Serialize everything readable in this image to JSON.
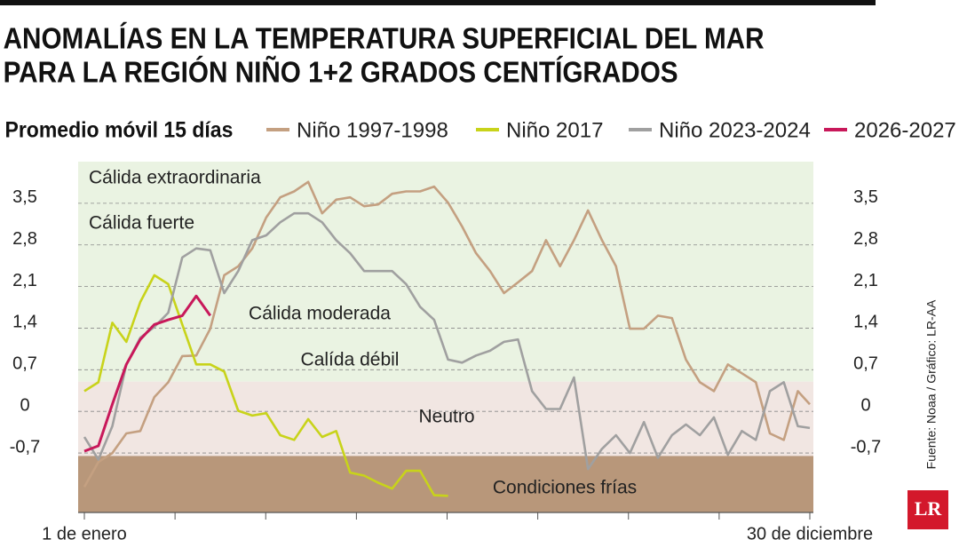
{
  "chart_data": {
    "type": "line",
    "title": "ANOMALÍAS EN LA TEMPERATURA SUPERFICIAL DEL MAR PARA LA REGIÓN NIÑO 1+2 GRADOS CENTÍGRADOS",
    "subtitle": "Promedio móvil 15 días",
    "source": "Fuente: Noaa / Gráfico: LR-AA",
    "logo": "LR",
    "annotations": [
      "Cálida extraordinaria",
      "Cálida fuerte",
      "Cálida moderada",
      "Calída débil",
      "Neutro",
      "Condiciones frías"
    ],
    "bands": [
      {
        "ylim": [
          0.5,
          4.2
        ],
        "color": "#eaf3e2"
      },
      {
        "ylim": [
          -0.75,
          0.5
        ],
        "color": "#f1e6e2"
      },
      {
        "ylim": [
          -1.7,
          -0.75
        ],
        "color": "#b8977a"
      }
    ],
    "x": [
      1,
      8,
      15,
      22,
      29,
      36,
      43,
      50,
      57,
      64,
      71,
      78,
      85,
      92,
      99,
      106,
      113,
      120,
      127,
      134,
      141,
      148,
      155,
      162,
      169,
      176,
      183,
      190,
      197,
      204,
      211,
      218,
      225,
      232,
      239,
      246,
      253,
      260,
      267,
      274,
      281,
      288,
      295,
      302,
      309,
      316,
      323,
      330,
      337,
      344,
      351,
      358,
      364
    ],
    "xlim": [
      1,
      364
    ],
    "xticks": [
      {
        "value": 1,
        "label": "1 de enero"
      },
      {
        "value": 364,
        "label": "30 de diciembre"
      }
    ],
    "ylim": [
      -1.7,
      4.2
    ],
    "yticks": [
      {
        "value": -0.7,
        "label": "-0,7"
      },
      0,
      {
        "value": 0.7,
        "label": "0,7"
      },
      {
        "value": 1.4,
        "label": "1,4"
      },
      {
        "value": 2.1,
        "label": "2,1"
      },
      {
        "value": 2.8,
        "label": "2,8"
      },
      {
        "value": 3.5,
        "label": "3,5"
      }
    ],
    "grid": true,
    "series": [
      {
        "name": "Niño 1997-1998",
        "color": "#c4a081",
        "values": [
          -1.27,
          -0.85,
          -0.7,
          -0.37,
          -0.33,
          0.24,
          0.49,
          0.93,
          0.94,
          1.39,
          2.29,
          2.44,
          2.74,
          3.26,
          3.6,
          3.7,
          3.86,
          3.33,
          3.56,
          3.6,
          3.45,
          3.48,
          3.66,
          3.7,
          3.7,
          3.78,
          3.51,
          3.11,
          2.66,
          2.36,
          1.99,
          2.17,
          2.36,
          2.88,
          2.44,
          2.88,
          3.38,
          2.88,
          2.44,
          1.39,
          1.39,
          1.61,
          1.57,
          0.87,
          0.49,
          0.34,
          0.79,
          0.64,
          0.49,
          -0.37,
          -0.48,
          0.34,
          0.12
        ]
      },
      {
        "name": "Niño 2017",
        "color": "#c8d31a",
        "values": [
          0.34,
          0.49,
          1.49,
          1.17,
          1.84,
          2.29,
          2.14,
          1.46,
          0.79,
          0.79,
          0.67,
          0.01,
          -0.07,
          -0.03,
          -0.4,
          -0.48,
          -0.13,
          -0.43,
          -0.33,
          -1.03,
          -1.08,
          -1.2,
          -1.3,
          -1.0,
          -1.0,
          -1.41,
          -1.42,
          null,
          null,
          null,
          null,
          null,
          null,
          null,
          null,
          null,
          null,
          null,
          null,
          null,
          null,
          null,
          null,
          null,
          null,
          null,
          null,
          null,
          null,
          null,
          null,
          null,
          null
        ]
      },
      {
        "name": "Niño 2023-2024",
        "color": "#a0a0a0",
        "values": [
          -0.43,
          -0.81,
          -0.25,
          0.79,
          1.24,
          1.42,
          1.66,
          2.59,
          2.74,
          2.71,
          1.99,
          2.36,
          2.88,
          2.96,
          3.18,
          3.33,
          3.33,
          3.18,
          2.88,
          2.66,
          2.36,
          2.36,
          2.36,
          2.14,
          1.76,
          1.54,
          0.87,
          0.82,
          0.94,
          1.02,
          1.17,
          1.21,
          0.34,
          0.04,
          0.04,
          0.57,
          -0.97,
          -0.63,
          -0.4,
          -0.7,
          -0.18,
          -0.78,
          -0.4,
          -0.22,
          -0.4,
          -0.1,
          -0.73,
          -0.33,
          -0.48,
          0.34,
          0.49,
          -0.25,
          -0.28
        ]
      },
      {
        "name": "2026-2027",
        "color": "#c8185a",
        "values": [
          -0.67,
          -0.58,
          0.12,
          0.79,
          1.21,
          1.46,
          1.54,
          1.61,
          1.94,
          1.61,
          null,
          null,
          null,
          null,
          null,
          null,
          null,
          null,
          null,
          null,
          null,
          null,
          null,
          null,
          null,
          null,
          null,
          null,
          null,
          null,
          null,
          null,
          null,
          null,
          null,
          null,
          null,
          null,
          null,
          null,
          null,
          null,
          null,
          null,
          null,
          null,
          null,
          null,
          null,
          null,
          null,
          null,
          null
        ]
      }
    ]
  }
}
